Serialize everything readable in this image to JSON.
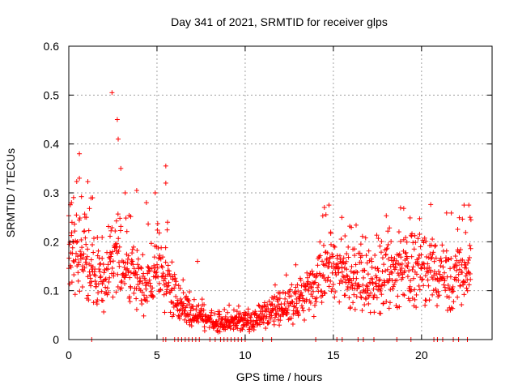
{
  "chart_data": {
    "type": "scatter",
    "title": "Day 341 of 2021, SRMTID for receiver glps",
    "xlabel": "GPS time / hours",
    "ylabel": "SRMTID / TECUs",
    "xlim": [
      0,
      24
    ],
    "ylim": [
      0,
      0.6
    ],
    "xticks": [
      0,
      5,
      10,
      15,
      20
    ],
    "xtick_labels": [
      "0",
      "5",
      "10",
      "15",
      "20"
    ],
    "yticks": [
      0,
      0.1,
      0.2,
      0.3,
      0.4,
      0.5,
      0.6
    ],
    "ytick_labels": [
      "0",
      "0.1",
      "0.2",
      "0.3",
      "0.4",
      "0.5",
      "0.6"
    ],
    "grid": true,
    "marker": "+",
    "marker_color": "#ff0000",
    "trend": [
      [
        0.0,
        0.16
      ],
      [
        0.5,
        0.17
      ],
      [
        1.0,
        0.17
      ],
      [
        1.5,
        0.13
      ],
      [
        2.0,
        0.12
      ],
      [
        2.5,
        0.16
      ],
      [
        3.0,
        0.17
      ],
      [
        3.5,
        0.14
      ],
      [
        4.0,
        0.11
      ],
      [
        4.5,
        0.12
      ],
      [
        5.0,
        0.14
      ],
      [
        5.5,
        0.12
      ],
      [
        6.0,
        0.09
      ],
      [
        6.5,
        0.06
      ],
      [
        7.0,
        0.05
      ],
      [
        7.5,
        0.05
      ],
      [
        8.0,
        0.04
      ],
      [
        8.5,
        0.035
      ],
      [
        9.0,
        0.035
      ],
      [
        9.5,
        0.04
      ],
      [
        10.0,
        0.035
      ],
      [
        10.5,
        0.04
      ],
      [
        11.0,
        0.05
      ],
      [
        11.5,
        0.06
      ],
      [
        12.0,
        0.06
      ],
      [
        12.5,
        0.07
      ],
      [
        13.0,
        0.08
      ],
      [
        13.5,
        0.1
      ],
      [
        14.0,
        0.12
      ],
      [
        14.5,
        0.14
      ],
      [
        15.0,
        0.15
      ],
      [
        15.5,
        0.13
      ],
      [
        16.0,
        0.12
      ],
      [
        16.5,
        0.12
      ],
      [
        17.0,
        0.11
      ],
      [
        17.5,
        0.12
      ],
      [
        18.0,
        0.13
      ],
      [
        18.5,
        0.13
      ],
      [
        19.0,
        0.14
      ],
      [
        19.5,
        0.14
      ],
      [
        20.0,
        0.14
      ],
      [
        20.5,
        0.14
      ],
      [
        21.0,
        0.13
      ],
      [
        21.5,
        0.13
      ],
      [
        22.0,
        0.14
      ],
      [
        22.5,
        0.14
      ],
      [
        22.8,
        0.15
      ]
    ],
    "peaks": [
      [
        2.45,
        0.505
      ],
      [
        2.75,
        0.45
      ],
      [
        2.8,
        0.41
      ],
      [
        2.95,
        0.35
      ],
      [
        0.6,
        0.38
      ],
      [
        0.6,
        0.33
      ],
      [
        5.5,
        0.355
      ],
      [
        5.5,
        0.32
      ],
      [
        4.9,
        0.3
      ],
      [
        3.85,
        0.305
      ],
      [
        1.35,
        0.29
      ],
      [
        14.75,
        0.275
      ],
      [
        22.75,
        0.25
      ],
      [
        22.8,
        0.245
      ],
      [
        5.6,
        0.24
      ],
      [
        0.15,
        0.28
      ],
      [
        1.0,
        0.25
      ],
      [
        3.2,
        0.3
      ],
      [
        4.4,
        0.28
      ],
      [
        7.3,
        0.16
      ]
    ],
    "zero_markers": [
      1.3,
      5.35,
      5.5,
      6.0,
      6.2,
      6.4,
      6.6,
      6.8,
      7.0,
      7.2,
      7.4,
      8.0,
      8.3,
      8.6,
      8.8,
      9.0,
      9.2,
      9.4,
      9.6,
      9.8,
      10.0,
      11.0,
      11.5,
      14.0,
      15.2,
      15.5,
      16.4,
      16.7,
      17.3,
      18.6,
      19.4,
      20.7,
      20.9,
      21.2,
      21.8,
      22.1,
      22.6
    ]
  }
}
